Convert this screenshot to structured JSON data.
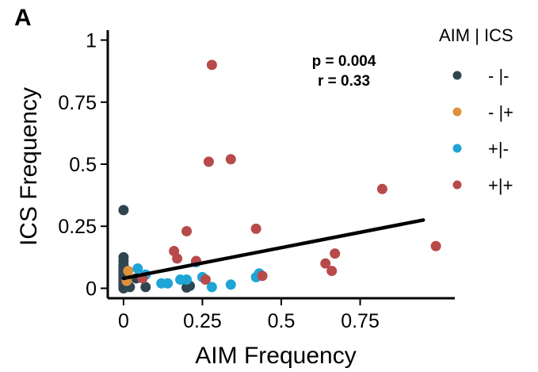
{
  "panel_label": "A",
  "chart_data": {
    "type": "scatter",
    "xlabel": "AIM Frequency",
    "ylabel": "ICS Frequency",
    "xlim": [
      -0.05,
      1.05
    ],
    "ylim": [
      -0.04,
      1.04
    ],
    "x_ticks": [
      {
        "value": 0,
        "label": "0"
      },
      {
        "value": 0.25,
        "label": "0.25"
      },
      {
        "value": 0.5,
        "label": "0.5"
      },
      {
        "value": 0.75,
        "label": "0.75"
      }
    ],
    "y_ticks": [
      {
        "value": 0,
        "label": "0"
      },
      {
        "value": 0.25,
        "label": "0.25"
      },
      {
        "value": 0.5,
        "label": "0.5"
      },
      {
        "value": 0.75,
        "label": "0.75"
      },
      {
        "value": 1,
        "label": "1"
      }
    ],
    "annotations": [
      "p = 0.004",
      "r = 0.33"
    ],
    "legend": {
      "title": "AIM | ICS",
      "placement": "right",
      "entries": [
        {
          "label": "- |-",
          "color": "#2f4550"
        },
        {
          "label": "- |+",
          "color": "#e0913c"
        },
        {
          "label": "+|-",
          "color": "#1ea5d6"
        },
        {
          "label": "+|+",
          "color": "#b84a4a"
        }
      ]
    },
    "regression_line": {
      "color": "#000000",
      "x": [
        0,
        0.95
      ],
      "y": [
        0.04,
        0.275
      ]
    },
    "series": [
      {
        "label": "- |-",
        "color": "#2f4550",
        "points": [
          [
            0,
            0.315
          ],
          [
            0,
            0.125
          ],
          [
            0,
            0.11
          ],
          [
            0,
            0.095
          ],
          [
            0,
            0.085
          ],
          [
            0,
            0.075
          ],
          [
            0,
            0.065
          ],
          [
            0,
            0.055
          ],
          [
            0,
            0.048
          ],
          [
            0,
            0.04
          ],
          [
            0,
            0.032
          ],
          [
            0,
            0.025
          ],
          [
            0,
            0.018
          ],
          [
            0,
            0.01
          ],
          [
            0,
            0.004
          ],
          [
            0,
            0
          ],
          [
            0.005,
            0.06
          ],
          [
            0.005,
            0.02
          ],
          [
            0.015,
            0.01
          ],
          [
            0.02,
            0.005
          ],
          [
            0.04,
            0.04
          ],
          [
            0.07,
            0.005
          ],
          [
            0.2,
            0.003
          ],
          [
            0.21,
            0.01
          ]
        ]
      },
      {
        "label": "- |+",
        "color": "#e0913c",
        "points": [
          [
            0.01,
            0.03
          ],
          [
            0.015,
            0.07
          ]
        ]
      },
      {
        "label": "+|-",
        "color": "#1ea5d6",
        "points": [
          [
            0.045,
            0.08
          ],
          [
            0.07,
            0.055
          ],
          [
            0.12,
            0.02
          ],
          [
            0.14,
            0.02
          ],
          [
            0.18,
            0.035
          ],
          [
            0.2,
            0.035
          ],
          [
            0.23,
            0.105
          ],
          [
            0.25,
            0.045
          ],
          [
            0.28,
            0.005
          ],
          [
            0.34,
            0.015
          ],
          [
            0.42,
            0.045
          ],
          [
            0.43,
            0.06
          ]
        ]
      },
      {
        "label": "+|+",
        "color": "#b84a4a",
        "points": [
          [
            0.28,
            0.9
          ],
          [
            0.27,
            0.51
          ],
          [
            0.34,
            0.52
          ],
          [
            0.82,
            0.4
          ],
          [
            0.42,
            0.24
          ],
          [
            0.2,
            0.23
          ],
          [
            0.99,
            0.17
          ],
          [
            0.16,
            0.15
          ],
          [
            0.17,
            0.12
          ],
          [
            0.23,
            0.11
          ],
          [
            0.67,
            0.14
          ],
          [
            0.64,
            0.1
          ],
          [
            0.66,
            0.07
          ],
          [
            0.44,
            0.05
          ],
          [
            0.26,
            0.035
          ],
          [
            0.06,
            0.04
          ]
        ]
      }
    ]
  }
}
